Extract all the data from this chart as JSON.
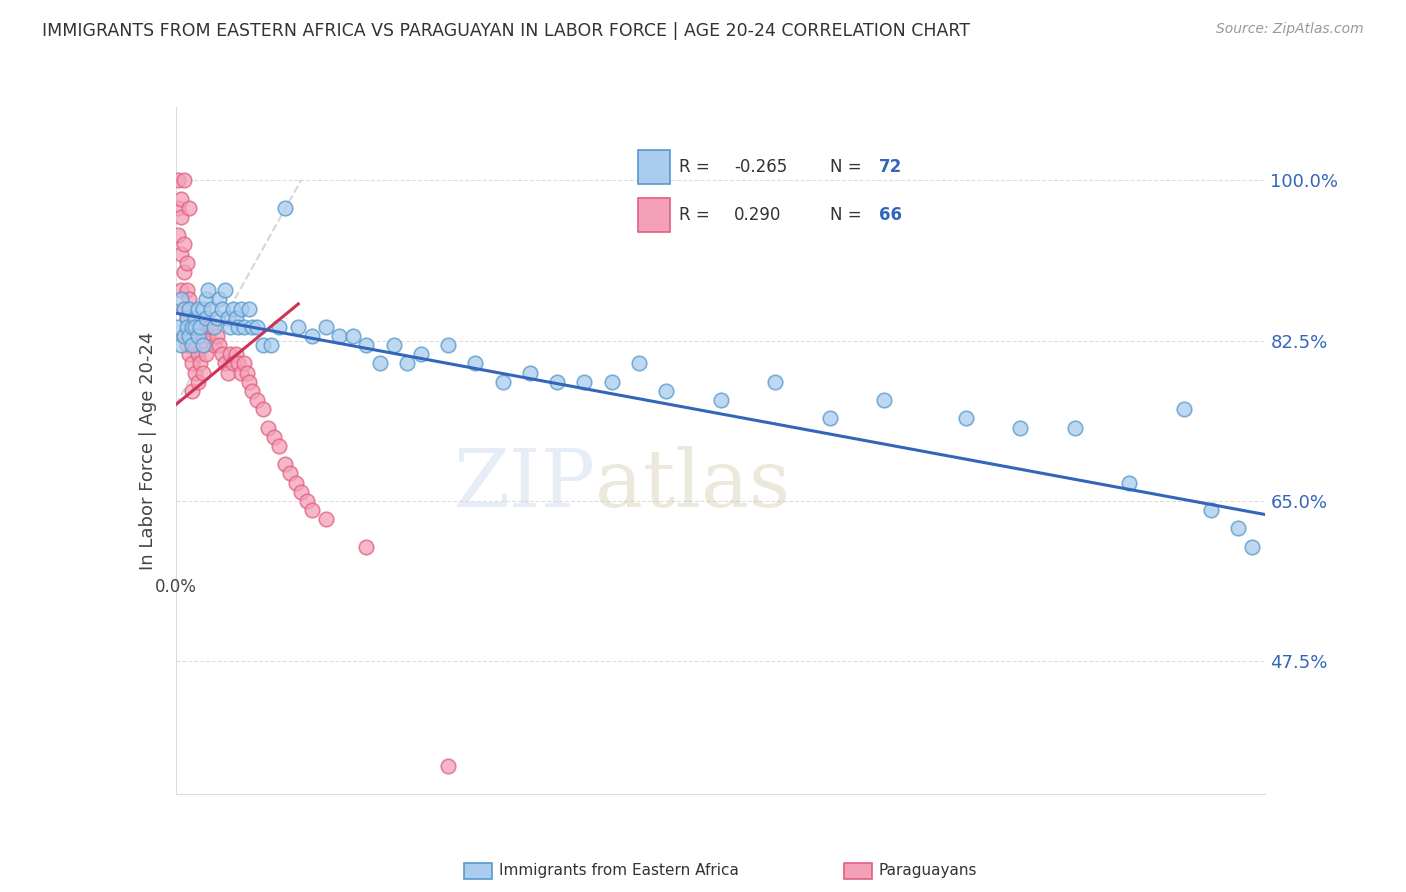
{
  "title": "IMMIGRANTS FROM EASTERN AFRICA VS PARAGUAYAN IN LABOR FORCE | AGE 20-24 CORRELATION CHART",
  "source": "Source: ZipAtlas.com",
  "ylabel": "In Labor Force | Age 20-24",
  "yticks": [
    0.475,
    0.65,
    0.825,
    1.0
  ],
  "ytick_labels": [
    "47.5%",
    "65.0%",
    "82.5%",
    "100.0%"
  ],
  "xmin": 0.0,
  "xmax": 0.4,
  "ymin": 0.33,
  "ymax": 1.08,
  "blue_R": "-0.265",
  "blue_N": "72",
  "pink_R": "0.290",
  "pink_N": "66",
  "blue_color": "#aaccee",
  "pink_color": "#f4a0b8",
  "blue_edge_color": "#5599cc",
  "pink_edge_color": "#e06080",
  "blue_line_color": "#3366bb",
  "pink_line_color": "#cc3355",
  "legend_blue_label": "Immigrants from Eastern Africa",
  "legend_pink_label": "Paraguayans",
  "blue_scatter_x": [
    0.001,
    0.002,
    0.002,
    0.003,
    0.003,
    0.004,
    0.004,
    0.005,
    0.005,
    0.006,
    0.006,
    0.007,
    0.007,
    0.008,
    0.008,
    0.009,
    0.01,
    0.01,
    0.011,
    0.011,
    0.012,
    0.013,
    0.014,
    0.015,
    0.016,
    0.017,
    0.018,
    0.019,
    0.02,
    0.021,
    0.022,
    0.023,
    0.024,
    0.025,
    0.027,
    0.028,
    0.03,
    0.032,
    0.035,
    0.038,
    0.04,
    0.045,
    0.05,
    0.055,
    0.06,
    0.065,
    0.07,
    0.075,
    0.08,
    0.085,
    0.09,
    0.1,
    0.11,
    0.12,
    0.13,
    0.14,
    0.15,
    0.16,
    0.17,
    0.18,
    0.2,
    0.22,
    0.24,
    0.26,
    0.29,
    0.31,
    0.33,
    0.35,
    0.37,
    0.38,
    0.39,
    0.395
  ],
  "blue_scatter_y": [
    0.84,
    0.87,
    0.82,
    0.86,
    0.83,
    0.85,
    0.84,
    0.83,
    0.86,
    0.84,
    0.82,
    0.85,
    0.84,
    0.86,
    0.83,
    0.84,
    0.82,
    0.86,
    0.87,
    0.85,
    0.88,
    0.86,
    0.84,
    0.85,
    0.87,
    0.86,
    0.88,
    0.85,
    0.84,
    0.86,
    0.85,
    0.84,
    0.86,
    0.84,
    0.86,
    0.84,
    0.84,
    0.82,
    0.82,
    0.84,
    0.97,
    0.84,
    0.83,
    0.84,
    0.83,
    0.83,
    0.82,
    0.8,
    0.82,
    0.8,
    0.81,
    0.82,
    0.8,
    0.78,
    0.79,
    0.78,
    0.78,
    0.78,
    0.8,
    0.77,
    0.76,
    0.78,
    0.74,
    0.76,
    0.74,
    0.73,
    0.73,
    0.67,
    0.75,
    0.64,
    0.62,
    0.6
  ],
  "pink_scatter_x": [
    0.001,
    0.001,
    0.001,
    0.002,
    0.002,
    0.002,
    0.002,
    0.003,
    0.003,
    0.003,
    0.003,
    0.003,
    0.004,
    0.004,
    0.004,
    0.004,
    0.005,
    0.005,
    0.005,
    0.005,
    0.006,
    0.006,
    0.006,
    0.007,
    0.007,
    0.007,
    0.008,
    0.008,
    0.008,
    0.009,
    0.009,
    0.01,
    0.01,
    0.011,
    0.011,
    0.012,
    0.013,
    0.014,
    0.015,
    0.016,
    0.017,
    0.018,
    0.019,
    0.02,
    0.021,
    0.022,
    0.023,
    0.024,
    0.025,
    0.026,
    0.027,
    0.028,
    0.03,
    0.032,
    0.034,
    0.036,
    0.038,
    0.04,
    0.042,
    0.044,
    0.046,
    0.048,
    0.05,
    0.055,
    0.07,
    0.1
  ],
  "pink_scatter_y": [
    0.97,
    0.94,
    1.0,
    0.98,
    0.96,
    0.92,
    0.88,
    0.93,
    0.9,
    0.86,
    0.83,
    1.0,
    0.91,
    0.88,
    0.85,
    0.82,
    0.87,
    0.84,
    0.81,
    0.97,
    0.83,
    0.8,
    0.77,
    0.85,
    0.82,
    0.79,
    0.84,
    0.81,
    0.78,
    0.83,
    0.8,
    0.82,
    0.79,
    0.84,
    0.81,
    0.83,
    0.84,
    0.82,
    0.83,
    0.82,
    0.81,
    0.8,
    0.79,
    0.81,
    0.8,
    0.81,
    0.8,
    0.79,
    0.8,
    0.79,
    0.78,
    0.77,
    0.76,
    0.75,
    0.73,
    0.72,
    0.71,
    0.69,
    0.68,
    0.67,
    0.66,
    0.65,
    0.64,
    0.63,
    0.6,
    0.36
  ],
  "blue_trend_x": [
    0.0,
    0.4
  ],
  "blue_trend_y": [
    0.855,
    0.635
  ],
  "pink_trend_x": [
    0.0,
    0.045
  ],
  "pink_trend_y": [
    0.755,
    0.865
  ],
  "ref_line_x": [
    0.0,
    0.046
  ],
  "ref_line_y": [
    0.755,
    1.0
  ],
  "watermark_zip": "ZIP",
  "watermark_atlas": "atlas",
  "background_color": "#ffffff"
}
